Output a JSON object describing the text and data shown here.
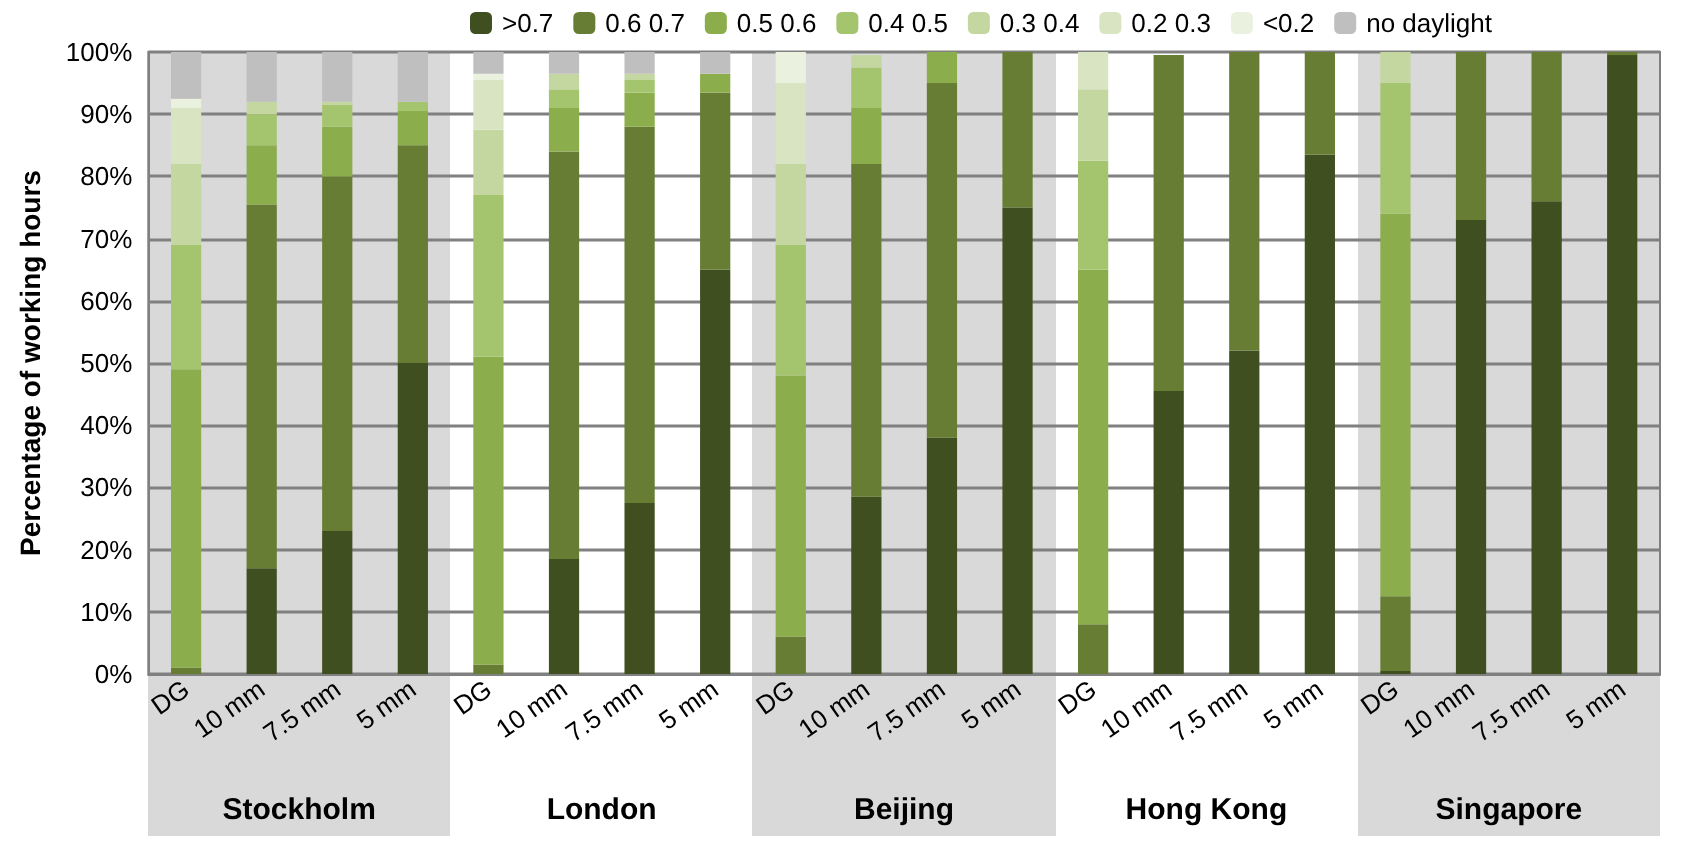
{
  "chart_data": {
    "type": "bar",
    "stacked": true,
    "ylabel": "Percentage of working hours",
    "categories": [
      "DG",
      "10 mm",
      "7.5 mm",
      "5 mm",
      "DG",
      "10 mm",
      "7.5 mm",
      "5 mm",
      "DG",
      "10 mm",
      "7.5 mm",
      "5 mm",
      "DG",
      "10 mm",
      "7.5 mm",
      "5 mm",
      "DG",
      "10 mm",
      "7.5 mm",
      "5 mm"
    ],
    "series": [
      {
        "name": ">0.7",
        "color": "#3f4f20",
        "values": [
          0,
          17,
          23,
          50,
          0,
          18.5,
          27.5,
          65,
          0,
          28.5,
          38,
          75,
          0,
          45.5,
          52,
          83.5,
          0.5,
          73,
          76,
          99.5
        ]
      },
      {
        "name": "0.6 0.7",
        "color": "#667d33",
        "values": [
          1,
          58.5,
          57,
          35,
          1.5,
          65.5,
          60.5,
          28.5,
          6,
          53.5,
          57,
          25,
          8,
          54,
          48,
          16.5,
          12,
          27,
          24,
          0.5
        ]
      },
      {
        "name": "0.5 0.6",
        "color": "#8bad4b",
        "values": [
          48,
          9.5,
          8,
          5.5,
          49.5,
          7,
          5.5,
          3,
          42,
          9,
          5,
          0,
          57,
          null,
          0,
          0,
          61.5,
          0,
          0,
          0
        ]
      },
      {
        "name": "0.4 0.5",
        "color": "#a4c46e",
        "values": [
          20,
          5,
          3.5,
          1.5,
          26,
          3,
          2,
          0,
          21,
          6.5,
          0,
          0,
          17.5,
          0,
          0,
          0,
          21,
          0,
          0,
          0
        ]
      },
      {
        "name": "0.3 0.4",
        "color": "#c4d7a0",
        "values": [
          13,
          2,
          0.5,
          0,
          10.5,
          2.5,
          1,
          0,
          13,
          2,
          0,
          0,
          11.5,
          0,
          0,
          0,
          5,
          0,
          0,
          0
        ]
      },
      {
        "name": "0.2 0.3",
        "color": "#d8e4c2",
        "values": [
          9,
          0,
          0,
          0,
          8,
          0,
          0,
          0,
          13,
          null,
          0,
          0,
          6,
          0,
          0,
          0,
          0,
          0,
          0,
          0
        ]
      },
      {
        "name": "<0.2",
        "color": "#ebf1df",
        "values": [
          1.5,
          0,
          0,
          0,
          1,
          0,
          0,
          0,
          5,
          0,
          0,
          0,
          0,
          0,
          0,
          0,
          0,
          0,
          0,
          0
        ]
      },
      {
        "name": "no daylight",
        "color": "#bfbfbf",
        "values": [
          7.5,
          8,
          8,
          8,
          3.5,
          3.5,
          3.5,
          3.5,
          0,
          0,
          0,
          0,
          0,
          0,
          0,
          0,
          0,
          0,
          0,
          0
        ]
      }
    ],
    "ylim": [
      0,
      100
    ],
    "yticks": [
      {
        "value": 0,
        "label": "0%"
      },
      {
        "value": 10,
        "label": "10%"
      },
      {
        "value": 20,
        "label": "20%"
      },
      {
        "value": 30,
        "label": "30%"
      },
      {
        "value": 40,
        "label": "40%"
      },
      {
        "value": 50,
        "label": "50%"
      },
      {
        "value": 60,
        "label": "60%"
      },
      {
        "value": 70,
        "label": "70%"
      },
      {
        "value": 80,
        "label": "80%"
      },
      {
        "value": 90,
        "label": "90%"
      },
      {
        "value": 100,
        "label": "100%"
      }
    ],
    "annotations": [
      "Stockholm",
      "London",
      "Beijing",
      "Hong Kong",
      "Singapore"
    ],
    "grid": "y",
    "legend": "top"
  }
}
